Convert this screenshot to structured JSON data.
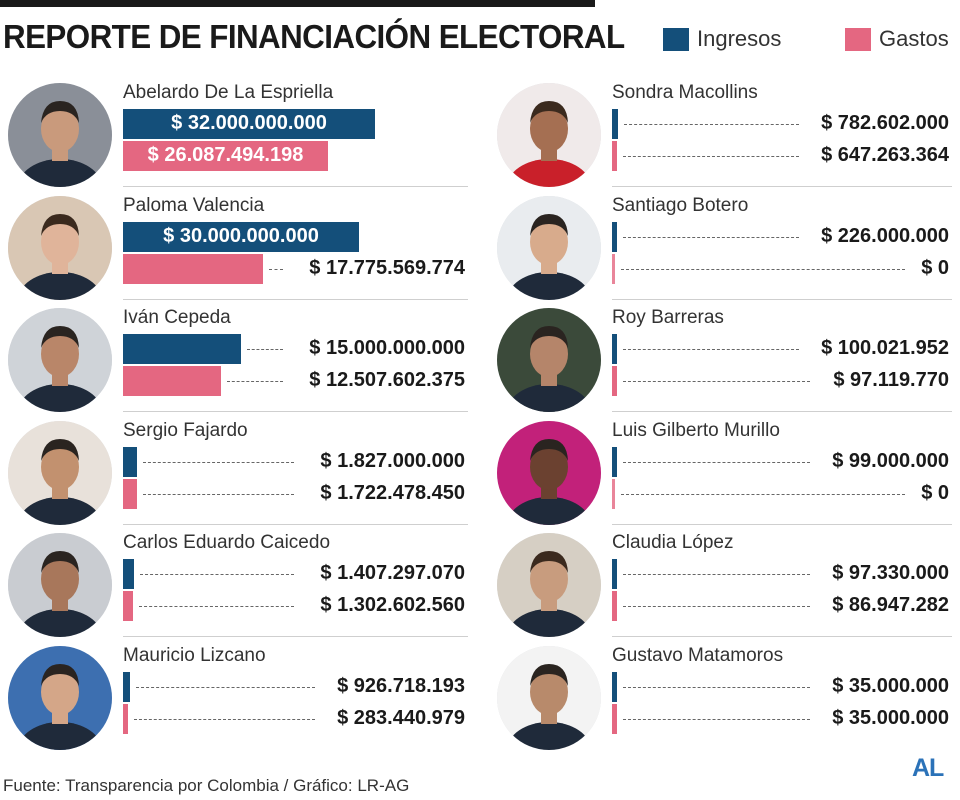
{
  "header": {
    "title": "REPORTE DE FINANCIACIÓN ELECTORAL",
    "legend": [
      {
        "label": "Ingresos",
        "color": "#144f7a"
      },
      {
        "label": "Gastos",
        "color": "#e46781"
      }
    ]
  },
  "chart_data": {
    "type": "bar",
    "title": "REPORTE DE FINANCIACIÓN ELECTORAL",
    "series_names": [
      "Ingresos",
      "Gastos"
    ],
    "colors": {
      "ingresos": "#144f7a",
      "gastos": "#e46781"
    },
    "max_value": 32000000000,
    "candidates": [
      {
        "name": "Abelardo De La Espriella",
        "ingresos": 32000000000,
        "gastos": 26087494198,
        "ingresos_label": "$ 32.000.000.000",
        "gastos_label": "$ 26.087.494.198"
      },
      {
        "name": "Paloma Valencia",
        "ingresos": 30000000000,
        "gastos": 17775569774,
        "ingresos_label": "$ 30.000.000.000",
        "gastos_label": "$ 17.775.569.774"
      },
      {
        "name": "Iván Cepeda",
        "ingresos": 15000000000,
        "gastos": 12507602375,
        "ingresos_label": "$ 15.000.000.000",
        "gastos_label": "$ 12.507.602.375"
      },
      {
        "name": "Sergio Fajardo",
        "ingresos": 1827000000,
        "gastos": 1722478450,
        "ingresos_label": "$ 1.827.000.000",
        "gastos_label": "$ 1.722.478.450"
      },
      {
        "name": "Carlos Eduardo Caicedo",
        "ingresos": 1407297070,
        "gastos": 1302602560,
        "ingresos_label": "$ 1.407.297.070",
        "gastos_label": "$ 1.302.602.560"
      },
      {
        "name": "Mauricio Lizcano",
        "ingresos": 926718193,
        "gastos": 283440979,
        "ingresos_label": "$ 926.718.193",
        "gastos_label": "$ 283.440.979"
      },
      {
        "name": "Sondra Macollins",
        "ingresos": 782602000,
        "gastos": 647263364,
        "ingresos_label": "$ 782.602.000",
        "gastos_label": "$ 647.263.364"
      },
      {
        "name": "Santiago Botero",
        "ingresos": 226000000,
        "gastos": 0,
        "ingresos_label": "$ 226.000.000",
        "gastos_label": "$ 0"
      },
      {
        "name": "Roy Barreras",
        "ingresos": 100021952,
        "gastos": 97119770,
        "ingresos_label": "$ 100.021.952",
        "gastos_label": "$ 97.119.770"
      },
      {
        "name": "Luis Gilberto Murillo",
        "ingresos": 99000000,
        "gastos": 0,
        "ingresos_label": "$ 99.000.000",
        "gastos_label": "$ 0"
      },
      {
        "name": "Claudia López",
        "ingresos": 97330000,
        "gastos": 86947282,
        "ingresos_label": "$ 97.330.000",
        "gastos_label": "$ 86.947.282"
      },
      {
        "name": "Gustavo Matamoros",
        "ingresos": 35000000,
        "gastos": 35000000,
        "ingresos_label": "$ 35.000.000",
        "gastos_label": "$ 35.000.000"
      }
    ]
  },
  "footer": {
    "source": "Fuente: Transparencia por Colombia / Gráfico: LR-AG",
    "logo": "AL"
  }
}
